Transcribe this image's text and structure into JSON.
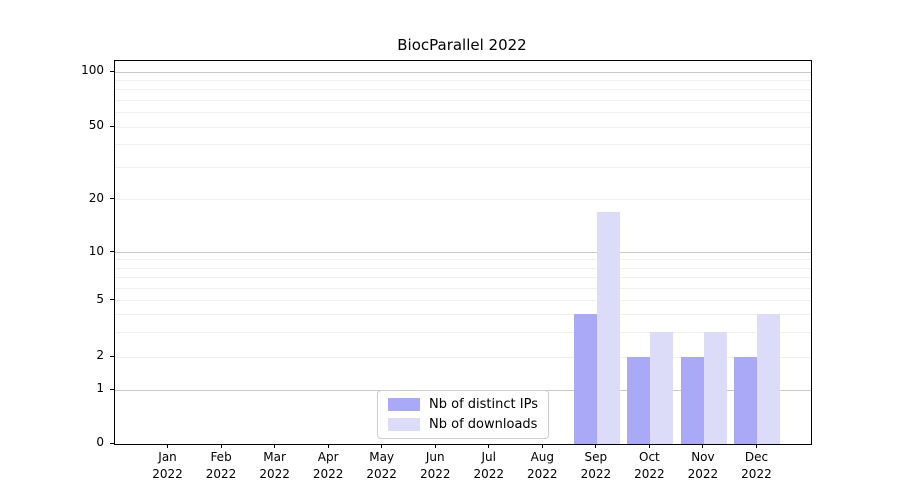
{
  "chart_data": {
    "type": "bar",
    "title": "BiocParallel 2022",
    "months": [
      "Jan",
      "Feb",
      "Mar",
      "Apr",
      "May",
      "Jun",
      "Jul",
      "Aug",
      "Sep",
      "Oct",
      "Nov",
      "Dec"
    ],
    "year": "2022",
    "categories": [
      "Jan 2022",
      "Feb 2022",
      "Mar 2022",
      "Apr 2022",
      "May 2022",
      "Jun 2022",
      "Jul 2022",
      "Aug 2022",
      "Sep 2022",
      "Oct 2022",
      "Nov 2022",
      "Dec 2022"
    ],
    "series": [
      {
        "name": "Nb of distinct IPs",
        "color": "#a9a9f8",
        "values": [
          0,
          0,
          0,
          0,
          0,
          0,
          0,
          0,
          4,
          2,
          2,
          2
        ]
      },
      {
        "name": "Nb of downloads",
        "color": "#dcdcf9",
        "values": [
          0,
          0,
          0,
          0,
          0,
          0,
          0,
          0,
          17,
          3,
          3,
          4
        ]
      }
    ],
    "yticks": [
      0,
      1,
      2,
      5,
      10,
      20,
      50,
      100
    ],
    "ylim": [
      0,
      113
    ],
    "yscale": "log-like with zero baseline",
    "xlabel": "",
    "ylabel": "",
    "grid": "horizontal",
    "legend_position": "lower center",
    "colors": {
      "grid_major": "#c9c9c9",
      "grid_minor": "#efefef",
      "axis": "#000000",
      "text": "#000000",
      "background": "#ffffff"
    }
  }
}
